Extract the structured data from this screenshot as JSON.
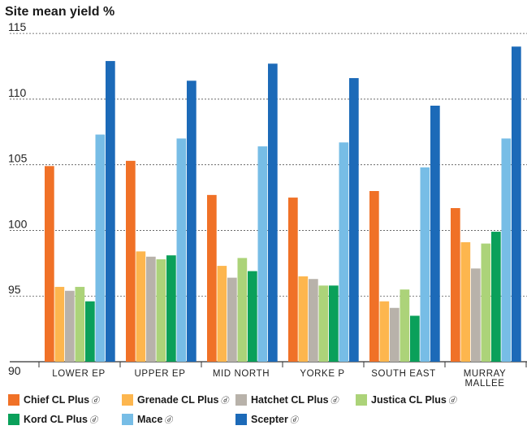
{
  "chart_data": {
    "type": "bar",
    "title": "Site mean yield %",
    "categories": [
      [
        "LOWER EP"
      ],
      [
        "UPPER EP"
      ],
      [
        "MID NORTH"
      ],
      [
        "YORKE P"
      ],
      [
        "SOUTH EAST"
      ],
      [
        "MURRAY",
        "MALLEE"
      ]
    ],
    "ylim": [
      90,
      116
    ],
    "yticks": [
      "90",
      "95",
      "100",
      "105",
      "110",
      "115"
    ],
    "grid": true,
    "legend_position": "bottom",
    "series": [
      {
        "name": "Chief CL Plus",
        "mark": "ⓓ",
        "color": "#f07127",
        "values": [
          104.9,
          105.3,
          102.7,
          102.5,
          103.0,
          101.7
        ]
      },
      {
        "name": "Grenade CL Plus",
        "mark": "ⓓ",
        "color": "#fdb64e",
        "values": [
          95.7,
          98.4,
          97.3,
          96.5,
          94.6,
          99.1
        ]
      },
      {
        "name": "Hatchet CL Plus",
        "mark": "ⓓ",
        "color": "#b8b2aa",
        "values": [
          95.4,
          98.0,
          96.4,
          96.3,
          94.1,
          97.1
        ]
      },
      {
        "name": "Justica CL Plus",
        "mark": "ⓓ",
        "color": "#acd379",
        "values": [
          95.7,
          97.8,
          97.9,
          95.8,
          95.5,
          99.0
        ]
      },
      {
        "name": "Kord CL Plus",
        "mark": "ⓓ",
        "color": "#0aa05a",
        "values": [
          94.6,
          98.1,
          96.9,
          95.8,
          93.5,
          99.9
        ]
      },
      {
        "name": "Mace",
        "mark": "ⓓ",
        "color": "#77bde6",
        "values": [
          107.3,
          107.0,
          106.4,
          106.7,
          104.8,
          107.0
        ]
      },
      {
        "name": "Scepter",
        "mark": "ⓓ",
        "color": "#1c6ab8",
        "values": [
          112.9,
          111.4,
          112.7,
          111.6,
          109.5,
          114.0
        ]
      }
    ]
  }
}
